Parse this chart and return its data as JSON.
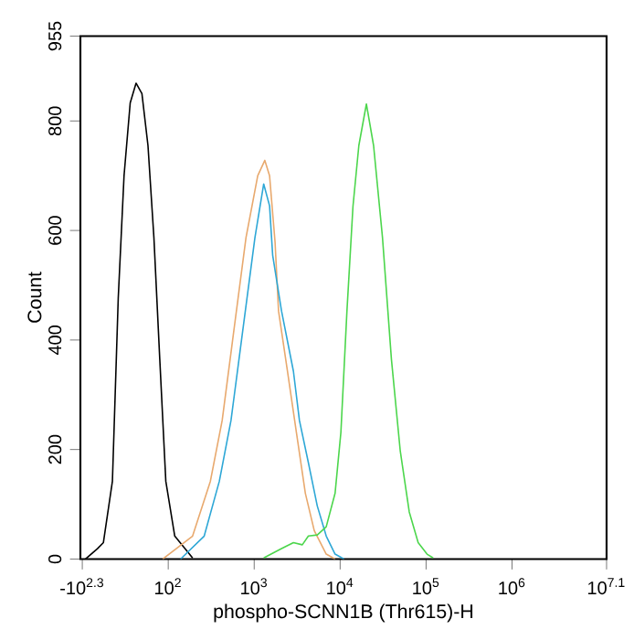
{
  "chart_data": {
    "type": "line",
    "xlabel": "phospho-SCNN1B (Thr615)-H",
    "ylabel": "Count",
    "log": "x",
    "xlim": [
      9.5,
      12589254
    ],
    "ylim": [
      0,
      955
    ],
    "xticks": [
      {
        "value": 10,
        "label": "-10$^{2.3}$"
      },
      {
        "value": 100,
        "label": "10$^{2}$"
      },
      {
        "value": 1000,
        "label": "10$^{3}$"
      },
      {
        "value": 10000,
        "label": "10$^{4}$"
      },
      {
        "value": 100000,
        "label": "10$^{5}$"
      },
      {
        "value": 1000000,
        "label": "10$^{6}$"
      },
      {
        "value": 12589254,
        "label": "10$^{7.1}$"
      }
    ],
    "yticks": [
      0,
      200,
      400,
      600,
      800,
      955
    ],
    "grid": false,
    "legend": false,
    "marker": "none",
    "line_style": "solid",
    "series": [
      {
        "color": "#000000",
        "x": [
          10.9,
          15,
          17.6,
          22.4,
          26.2,
          30.6,
          36.1,
          42.2,
          49.4,
          58.1,
          68.1,
          79.7,
          93.7,
          119,
          192
        ],
        "values": [
          0,
          19,
          30,
          142,
          477,
          700,
          833,
          869,
          850,
          755,
          587,
          365,
          142,
          42,
          2
        ]
      },
      {
        "color": "#e8a96e",
        "x": [
          86.3,
          192,
          309,
          424,
          583,
          803,
          1100,
          1330,
          1510,
          1750,
          1920,
          2440,
          3100,
          3940,
          5000,
          6890,
          8730
        ],
        "values": [
          0,
          42,
          142,
          253,
          420,
          587,
          700,
          728,
          700,
          578,
          453,
          343,
          231,
          120,
          52,
          9,
          0
        ]
      },
      {
        "color": "#2ea7d6",
        "x": [
          139,
          262,
          393,
          537,
          740,
          1020,
          1290,
          1510,
          1640,
          2080,
          2860,
          3360,
          4270,
          5420,
          6890,
          8730,
          11100
        ],
        "values": [
          0,
          42,
          142,
          253,
          420,
          587,
          685,
          645,
          555,
          453,
          343,
          253,
          176,
          97,
          42,
          9,
          0
        ]
      },
      {
        "color": "#4cd64c",
        "x": [
          1290,
          2080,
          2860,
          3630,
          4270,
          5420,
          6890,
          8730,
          10200,
          12000,
          14100,
          16500,
          20200,
          24500,
          31100,
          39500,
          50100,
          63700,
          80900,
          102600,
          120800
        ],
        "values": [
          2,
          19,
          30,
          26,
          42,
          44,
          59,
          120,
          231,
          453,
          644,
          755,
          831,
          755,
          587,
          365,
          197,
          86,
          30,
          9,
          2
        ]
      }
    ]
  }
}
